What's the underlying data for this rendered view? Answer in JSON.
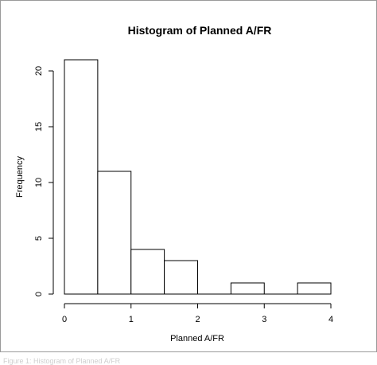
{
  "chart_data": {
    "type": "bar",
    "title": "Histogram of Planned A/FR",
    "xlabel": "Planned A/FR",
    "ylabel": "Frequency",
    "bins": [
      {
        "from": 0.0,
        "to": 0.5,
        "count": 21
      },
      {
        "from": 0.5,
        "to": 1.0,
        "count": 11
      },
      {
        "from": 1.0,
        "to": 1.5,
        "count": 4
      },
      {
        "from": 1.5,
        "to": 2.0,
        "count": 3
      },
      {
        "from": 2.0,
        "to": 2.5,
        "count": 0
      },
      {
        "from": 2.5,
        "to": 3.0,
        "count": 1
      },
      {
        "from": 3.0,
        "to": 3.5,
        "count": 0
      },
      {
        "from": 3.5,
        "to": 4.0,
        "count": 1
      }
    ],
    "x_ticks": [
      0,
      1,
      2,
      3,
      4
    ],
    "x_tick_labels": [
      "0",
      "1",
      "2",
      "3",
      "4"
    ],
    "y_ticks": [
      0,
      5,
      10,
      15,
      20
    ],
    "y_tick_labels": [
      "0",
      "5",
      "10",
      "15",
      "20"
    ],
    "xlim": [
      0,
      4
    ],
    "ylim": [
      0,
      21
    ],
    "grid": false,
    "bar_fill": "#ffffff",
    "bar_stroke": "#000000"
  },
  "caption": "Figure 1: Histogram of Planned A/FR"
}
